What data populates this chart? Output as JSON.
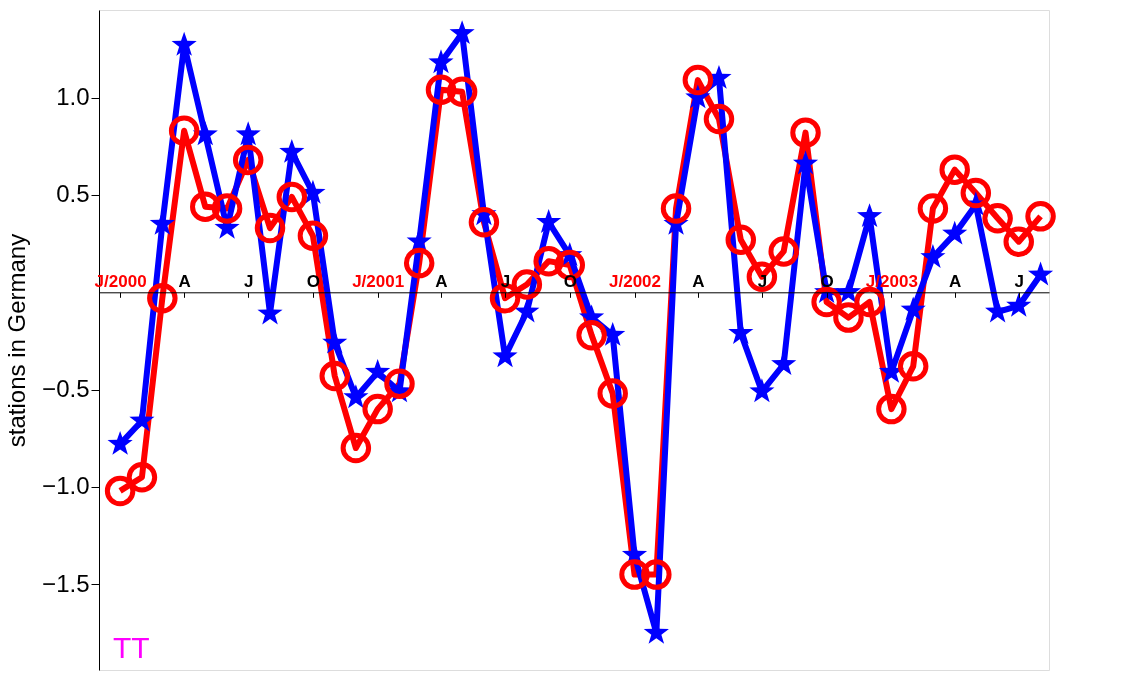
{
  "chart_data": {
    "type": "line",
    "ylabel": "stations in Germany",
    "x": [
      "2000-01",
      "2000-02",
      "2000-03",
      "2000-04",
      "2000-05",
      "2000-06",
      "2000-07",
      "2000-08",
      "2000-09",
      "2000-10",
      "2000-11",
      "2000-12",
      "2001-01",
      "2001-02",
      "2001-03",
      "2001-04",
      "2001-05",
      "2001-06",
      "2001-07",
      "2001-08",
      "2001-09",
      "2001-10",
      "2001-11",
      "2001-12",
      "2002-01",
      "2002-02",
      "2002-03",
      "2002-04",
      "2002-05",
      "2002-06",
      "2002-07",
      "2002-08",
      "2002-09",
      "2002-10",
      "2002-11",
      "2002-12",
      "2003-01",
      "2003-02",
      "2003-03",
      "2003-04",
      "2003-05",
      "2003-06",
      "2003-07",
      "2003-08"
    ],
    "series": [
      {
        "color": "#ff0000",
        "marker": "circle",
        "values": [
          -1.02,
          -0.95,
          -0.03,
          0.83,
          0.44,
          0.43,
          0.68,
          0.33,
          0.49,
          0.29,
          -0.43,
          -0.8,
          -0.6,
          -0.47,
          0.15,
          1.04,
          1.03,
          0.36,
          -0.03,
          0.04,
          0.16,
          0.14,
          -0.22,
          -0.52,
          -1.45,
          -1.45,
          0.43,
          1.09,
          0.89,
          0.27,
          0.08,
          0.21,
          0.82,
          -0.05,
          -0.13,
          -0.05,
          -0.6,
          -0.38,
          0.43,
          0.63,
          0.51,
          0.38,
          0.26,
          0.39
        ]
      },
      {
        "color": "#0000ff",
        "marker": "star",
        "values": [
          -0.78,
          -0.66,
          0.35,
          1.27,
          0.81,
          0.33,
          0.81,
          -0.11,
          0.72,
          0.51,
          -0.26,
          -0.54,
          -0.41,
          -0.51,
          0.26,
          1.18,
          1.33,
          0.4,
          -0.33,
          -0.1,
          0.36,
          0.19,
          -0.13,
          -0.22,
          -1.35,
          -1.75,
          0.35,
          1.0,
          1.1,
          -0.21,
          -0.51,
          -0.37,
          0.66,
          0.0,
          0.0,
          0.39,
          -0.41,
          -0.09,
          0.18,
          0.3,
          0.45,
          -0.1,
          -0.07,
          0.09
        ]
      }
    ],
    "xlim": [
      "1999-12-02",
      "2003-08-13"
    ],
    "xticks": [
      {
        "value": "2000-01",
        "label": "J/2000"
      },
      {
        "value": "2000-04",
        "label": "A"
      },
      {
        "value": "2000-07",
        "label": "J"
      },
      {
        "value": "2000-10",
        "label": "O"
      },
      {
        "value": "2001-01",
        "label": "J/2001"
      },
      {
        "value": "2001-04",
        "label": "A"
      },
      {
        "value": "2001-07",
        "label": "J"
      },
      {
        "value": "2001-10",
        "label": "O"
      },
      {
        "value": "2002-01",
        "label": "J/2002"
      },
      {
        "value": "2002-04",
        "label": "A"
      },
      {
        "value": "2002-07",
        "label": "J"
      },
      {
        "value": "2002-10",
        "label": "O"
      },
      {
        "value": "2003-01",
        "label": "J/2003"
      },
      {
        "value": "2003-04",
        "label": "A"
      },
      {
        "value": "2003-07",
        "label": "J"
      }
    ],
    "ylim": [
      -1.94,
      1.45
    ],
    "yticks": [
      {
        "value": -1.5,
        "label": "−1.5"
      },
      {
        "value": -1,
        "label": "−1.0"
      },
      {
        "value": -0.5,
        "label": "−0.5"
      },
      {
        "value": 0.5,
        "label": "0.5"
      },
      {
        "value": 1,
        "label": "1.0"
      }
    ],
    "grid": false,
    "line_style": "solid",
    "annotations": [
      "TT"
    ]
  }
}
